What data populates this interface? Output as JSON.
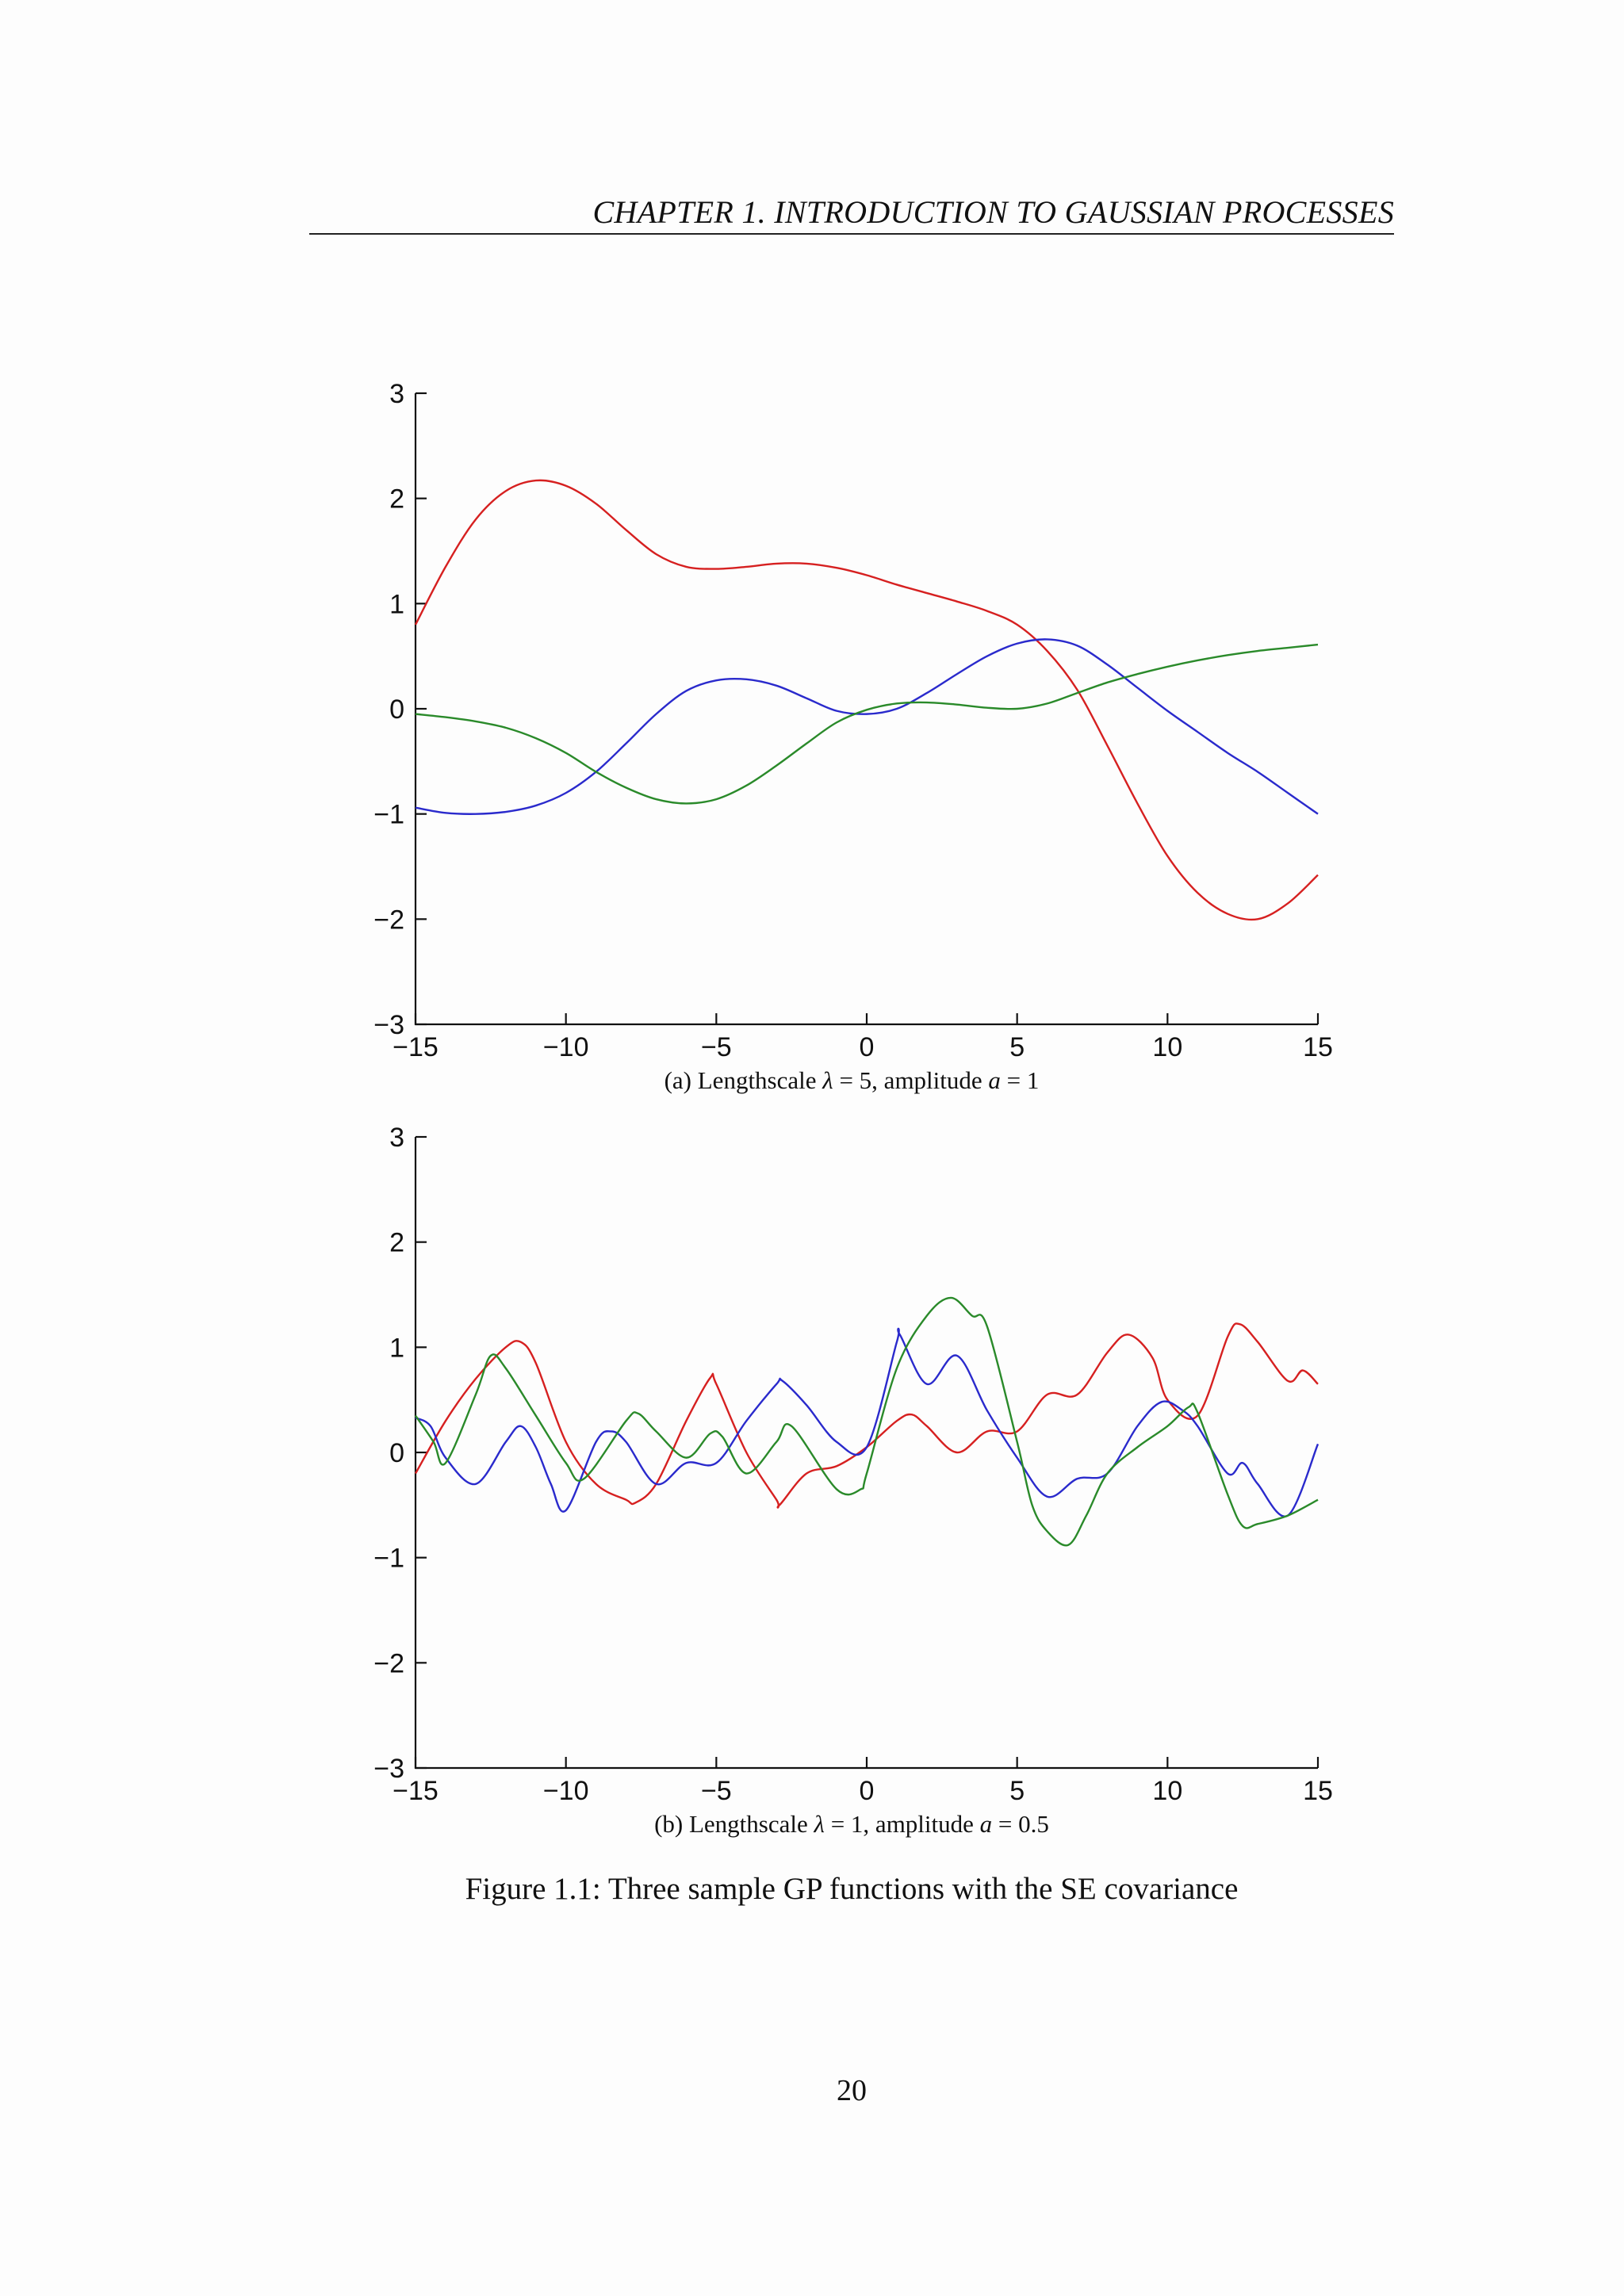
{
  "running_head": "CHAPTER 1.  INTRODUCTION TO GAUSSIAN PROCESSES",
  "figure_caption": "Figure 1.1: Three sample GP functions with the SE covariance",
  "page_number": "20",
  "chart_data": [
    {
      "type": "line",
      "subcaption": {
        "prefix": "(a) Lengthscale ",
        "symbol": "λ",
        "lambda_value": " = 5, amplitude ",
        "amp_symbol": "a",
        "amp_value": " = 1"
      },
      "xlim": [
        -15,
        15
      ],
      "ylim": [
        -3,
        3
      ],
      "xticks": [
        -15,
        -10,
        -5,
        0,
        5,
        10,
        15
      ],
      "yticks": [
        -3,
        -2,
        -1,
        0,
        1,
        2,
        3
      ],
      "xtick_labels": [
        "−15",
        "−10",
        "−5",
        "0",
        "5",
        "10",
        "15"
      ],
      "ytick_labels": [
        "−3",
        "−2",
        "−1",
        "0",
        "1",
        "2",
        "3"
      ],
      "grid": false,
      "series": [
        {
          "color": "#d62020",
          "x": [
            -15,
            -14,
            -13,
            -12,
            -11,
            -10,
            -9,
            -8,
            -7,
            -6,
            -5,
            -4,
            -3,
            -2,
            -1,
            0,
            1,
            2,
            3,
            4,
            5,
            6,
            7,
            8,
            9,
            10,
            11,
            12,
            13,
            14,
            15
          ],
          "y": [
            0.8,
            1.35,
            1.8,
            2.07,
            2.17,
            2.12,
            1.95,
            1.7,
            1.47,
            1.35,
            1.33,
            1.35,
            1.38,
            1.38,
            1.34,
            1.27,
            1.18,
            1.1,
            1.02,
            0.93,
            0.8,
            0.55,
            0.18,
            -0.35,
            -0.9,
            -1.4,
            -1.75,
            -1.95,
            -2.0,
            -1.85,
            -1.58
          ]
        },
        {
          "color": "#2a2acc",
          "x": [
            -15,
            -14,
            -13,
            -12,
            -11,
            -10,
            -9,
            -8,
            -7,
            -6,
            -5,
            -4,
            -3,
            -2,
            -1,
            0,
            1,
            2,
            3,
            4,
            5,
            6,
            7,
            8,
            9,
            10,
            11,
            12,
            13,
            14,
            15
          ],
          "y": [
            -0.94,
            -0.99,
            -1.0,
            -0.98,
            -0.92,
            -0.8,
            -0.6,
            -0.33,
            -0.05,
            0.17,
            0.27,
            0.28,
            0.22,
            0.1,
            -0.02,
            -0.05,
            0.0,
            0.15,
            0.33,
            0.5,
            0.62,
            0.66,
            0.6,
            0.42,
            0.2,
            -0.02,
            -0.22,
            -0.42,
            -0.6,
            -0.8,
            -1.0
          ]
        },
        {
          "color": "#2a8a2a",
          "x": [
            -15,
            -14,
            -13,
            -12,
            -11,
            -10,
            -9,
            -8,
            -7,
            -6,
            -5,
            -4,
            -3,
            -2,
            -1,
            0,
            1,
            2,
            3,
            4,
            5,
            6,
            7,
            8,
            9,
            10,
            11,
            12,
            13,
            14,
            15
          ],
          "y": [
            -0.05,
            -0.08,
            -0.12,
            -0.18,
            -0.28,
            -0.42,
            -0.6,
            -0.75,
            -0.86,
            -0.9,
            -0.86,
            -0.73,
            -0.54,
            -0.33,
            -0.13,
            -0.01,
            0.05,
            0.06,
            0.04,
            0.01,
            0.0,
            0.05,
            0.15,
            0.25,
            0.33,
            0.4,
            0.46,
            0.51,
            0.55,
            0.58,
            0.61
          ]
        }
      ]
    },
    {
      "type": "line",
      "subcaption": {
        "prefix": "(b) Lengthscale ",
        "symbol": "λ",
        "lambda_value": " = 1, amplitude ",
        "amp_symbol": "a",
        "amp_value": " = 0.5"
      },
      "xlim": [
        -15,
        15
      ],
      "ylim": [
        -3,
        3
      ],
      "xticks": [
        -15,
        -10,
        -5,
        0,
        5,
        10,
        15
      ],
      "yticks": [
        -3,
        -2,
        -1,
        0,
        1,
        2,
        3
      ],
      "xtick_labels": [
        "−15",
        "−10",
        "−5",
        "0",
        "5",
        "10",
        "15"
      ],
      "ytick_labels": [
        "−3",
        "−2",
        "−1",
        "0",
        "1",
        "2",
        "3"
      ],
      "grid": false,
      "series": [
        {
          "color": "#d62020",
          "x": [
            -15,
            -14,
            -13,
            -12,
            -11.5,
            -11,
            -10,
            -9,
            -8,
            -7.7,
            -7,
            -6,
            -5.2,
            -5,
            -4,
            -3,
            -2.9,
            -2,
            -1,
            0,
            1,
            1.5,
            2,
            3,
            4,
            5,
            6,
            7,
            8,
            8.7,
            9.5,
            10,
            11,
            12,
            12.4,
            13,
            14,
            14.5,
            15
          ],
          "y": [
            -0.2,
            0.3,
            0.7,
            1.0,
            1.05,
            0.85,
            0.1,
            -0.3,
            -0.45,
            -0.48,
            -0.3,
            0.3,
            0.71,
            0.65,
            0.0,
            -0.45,
            -0.5,
            -0.2,
            -0.13,
            0.05,
            0.3,
            0.36,
            0.25,
            0.0,
            0.2,
            0.2,
            0.55,
            0.55,
            0.95,
            1.12,
            0.9,
            0.5,
            0.35,
            1.1,
            1.22,
            1.05,
            0.68,
            0.78,
            0.65
          ]
        },
        {
          "color": "#2a2acc",
          "x": [
            -15,
            -14.5,
            -14,
            -13,
            -12,
            -11.5,
            -11,
            -10.5,
            -10,
            -9,
            -8.5,
            -8,
            -7,
            -6,
            -5,
            -4,
            -3,
            -2.8,
            -2,
            -1,
            0,
            1,
            1.1,
            2,
            3,
            4,
            5,
            6,
            7,
            8,
            9,
            9.8,
            10.5,
            11,
            12,
            12.5,
            13,
            14,
            15
          ],
          "y": [
            0.33,
            0.25,
            -0.05,
            -0.3,
            0.1,
            0.25,
            0.05,
            -0.3,
            -0.55,
            0.1,
            0.2,
            0.1,
            -0.3,
            -0.1,
            -0.1,
            0.3,
            0.65,
            0.68,
            0.45,
            0.1,
            0.05,
            1.05,
            1.12,
            0.65,
            0.92,
            0.4,
            -0.05,
            -0.42,
            -0.25,
            -0.2,
            0.25,
            0.48,
            0.4,
            0.25,
            -0.2,
            -0.1,
            -0.3,
            -0.6,
            0.08
          ]
        },
        {
          "color": "#2a8a2a",
          "x": [
            -15,
            -14.4,
            -14,
            -13,
            -12.5,
            -12,
            -11,
            -10,
            -9.4,
            -8,
            -7.6,
            -7,
            -6,
            -5.2,
            -4.8,
            -4,
            -3,
            -2.5,
            -1,
            -0.2,
            0,
            1,
            2,
            2.8,
            3.5,
            4,
            5,
            5.5,
            6,
            6.7,
            7.3,
            8,
            9,
            10,
            10.7,
            11,
            12,
            12.5,
            13,
            14,
            15
          ],
          "y": [
            0.35,
            0.1,
            -0.1,
            0.55,
            0.92,
            0.8,
            0.35,
            -0.1,
            -0.25,
            0.3,
            0.37,
            0.2,
            -0.05,
            0.18,
            0.15,
            -0.2,
            0.1,
            0.25,
            -0.35,
            -0.35,
            -0.2,
            0.8,
            1.3,
            1.47,
            1.3,
            1.2,
            0.1,
            -0.5,
            -0.75,
            -0.88,
            -0.6,
            -0.2,
            0.05,
            0.25,
            0.43,
            0.38,
            -0.4,
            -0.7,
            -0.68,
            -0.6,
            -0.45
          ]
        }
      ]
    }
  ]
}
